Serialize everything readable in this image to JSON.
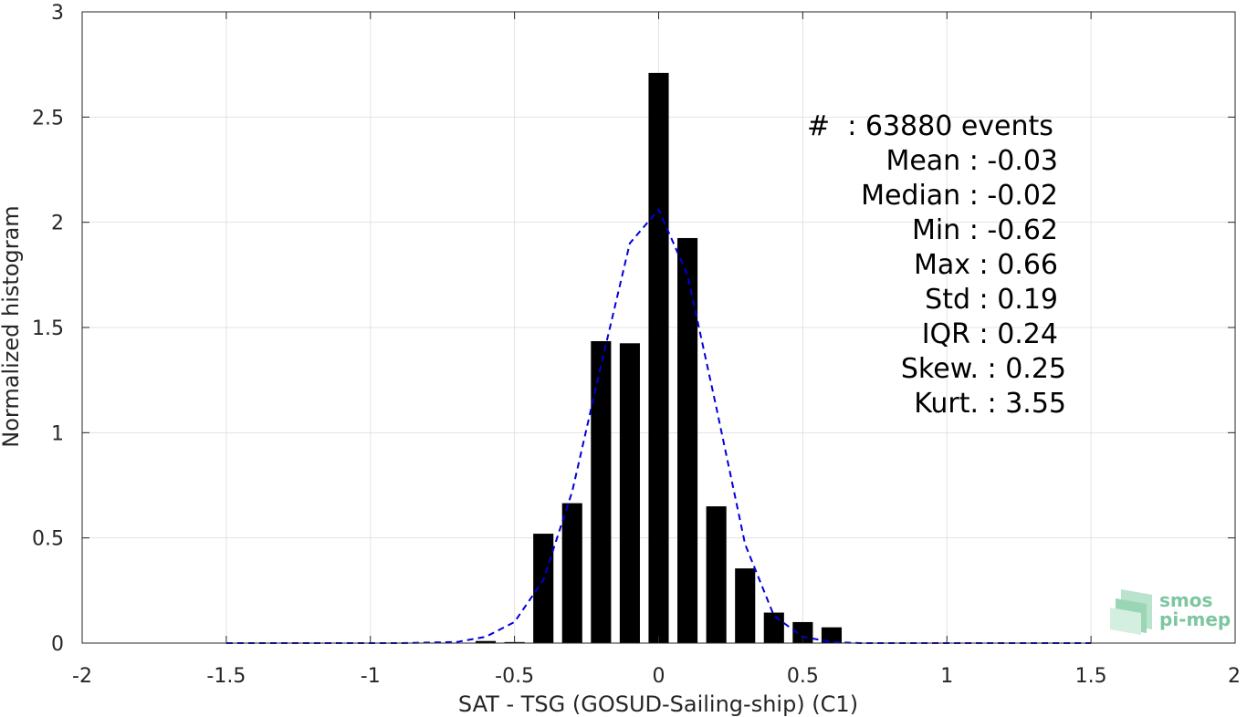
{
  "chart_data": {
    "type": "bar",
    "xlabel": "SAT - TSG (GOSUD-Sailing-ship) (C1)",
    "ylabel": "Normalized histogram",
    "xlim": [
      -2,
      2
    ],
    "ylim": [
      0,
      3
    ],
    "xticks": [
      -2,
      -1.5,
      -1,
      -0.5,
      0,
      0.5,
      1,
      1.5,
      2
    ],
    "xtick_labels": [
      "-2",
      "-1.5",
      "-1",
      "-0.5",
      "0",
      "0.5",
      "1",
      "1.5",
      "2"
    ],
    "yticks": [
      0,
      0.5,
      1,
      1.5,
      2,
      2.5,
      3
    ],
    "ytick_labels": [
      "0",
      "0.5",
      "1",
      "1.5",
      "2",
      "2.5",
      "3"
    ],
    "grid": true,
    "bar_width": 0.07,
    "bars": [
      {
        "x": -0.6,
        "y": 0.01
      },
      {
        "x": -0.5,
        "y": 0.005
      },
      {
        "x": -0.4,
        "y": 0.52
      },
      {
        "x": -0.3,
        "y": 0.665
      },
      {
        "x": -0.2,
        "y": 1.435
      },
      {
        "x": -0.1,
        "y": 1.425
      },
      {
        "x": 0.0,
        "y": 2.71
      },
      {
        "x": 0.1,
        "y": 1.925
      },
      {
        "x": 0.2,
        "y": 0.65
      },
      {
        "x": 0.3,
        "y": 0.355
      },
      {
        "x": 0.4,
        "y": 0.145
      },
      {
        "x": 0.5,
        "y": 0.1
      },
      {
        "x": 0.6,
        "y": 0.075
      }
    ],
    "series": [
      {
        "type": "line",
        "style": "dashed",
        "color": "#0000dd",
        "x": [
          -1.5,
          -1.3,
          -1.1,
          -0.9,
          -0.7,
          -0.6,
          -0.5,
          -0.4,
          -0.3,
          -0.2,
          -0.1,
          0.0,
          0.1,
          0.2,
          0.3,
          0.4,
          0.5,
          0.6,
          0.7,
          0.9,
          1.1,
          1.3,
          1.5
        ],
        "y": [
          0,
          0,
          0,
          0,
          0.005,
          0.03,
          0.1,
          0.3,
          0.72,
          1.32,
          1.9,
          2.06,
          1.75,
          1.12,
          0.47,
          0.13,
          0.03,
          0.005,
          0,
          0,
          0,
          0,
          0
        ]
      }
    ],
    "bar_color": "#000000",
    "stats": [
      "#  : 63880 events",
      "Mean : -0.03",
      "Median : -0.02",
      "Min : -0.62",
      "Max : 0.66",
      "Std : 0.19",
      "IQR : 0.24",
      "Skew. : 0.25",
      "Kurt. : 3.55"
    ]
  },
  "logo": {
    "line1": "smos",
    "line2": "pi-mep",
    "color": "#7cc7a0"
  }
}
